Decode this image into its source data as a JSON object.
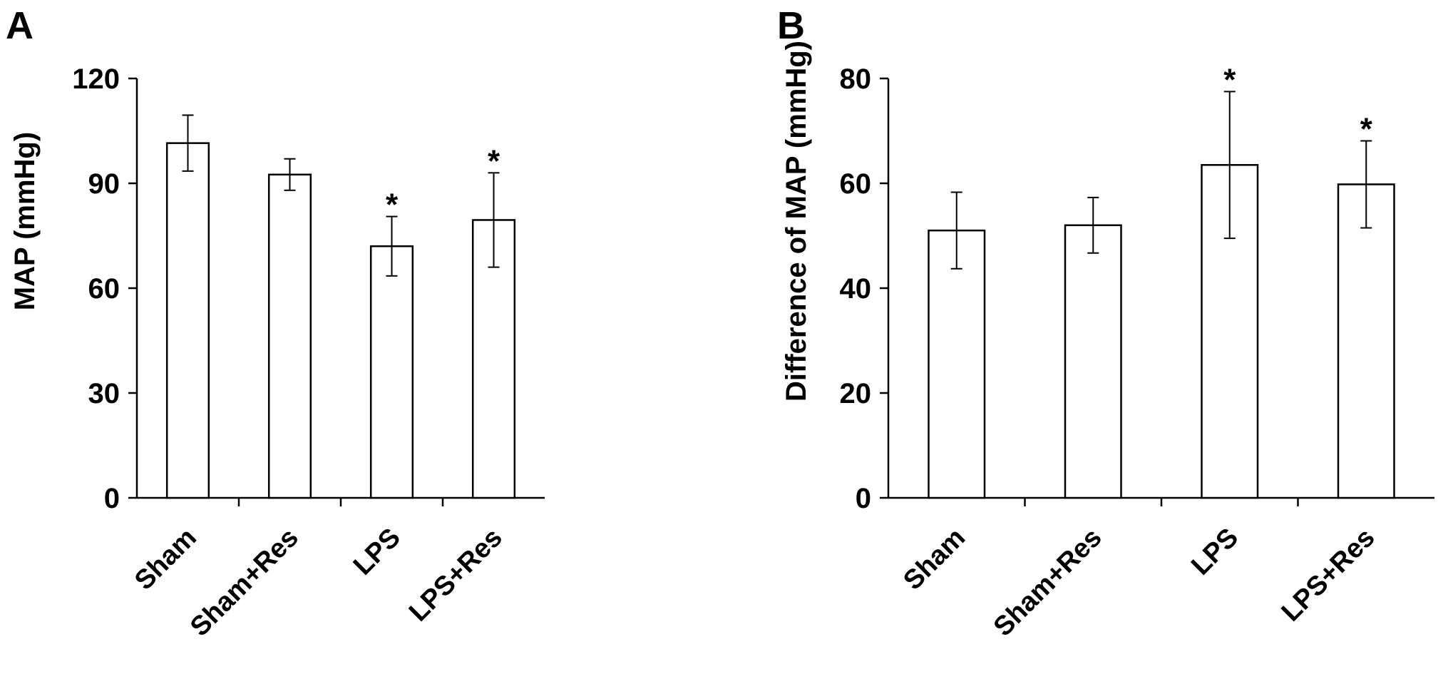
{
  "chart_data": [
    {
      "panel_label": "A",
      "type": "bar",
      "categories": [
        "Sham",
        "Sham+Res",
        "LPS",
        "LPS+Res"
      ],
      "values": [
        101.5,
        92.5,
        72,
        79.5
      ],
      "errors": [
        8,
        4.5,
        8.5,
        13.5
      ],
      "significance": [
        "",
        "",
        "*",
        "*"
      ],
      "ylabel": "MAP (mmHg)",
      "ylim": [
        0,
        120
      ],
      "yticks": [
        0,
        30,
        60,
        90,
        120
      ],
      "bar_fill": "#ffffff",
      "stroke_color": "#000000"
    },
    {
      "panel_label": "B",
      "type": "bar",
      "categories": [
        "Sham",
        "Sham+Res",
        "LPS",
        "LPS+Res"
      ],
      "values": [
        51,
        52,
        63.5,
        59.8
      ],
      "errors": [
        7.3,
        5.3,
        14,
        8.3
      ],
      "significance": [
        "",
        "",
        "*",
        "*"
      ],
      "ylabel": "Difference of MAP (mmHg)",
      "ylim": [
        0,
        80
      ],
      "yticks": [
        0,
        20,
        40,
        60,
        80
      ],
      "bar_fill": "#ffffff",
      "stroke_color": "#000000"
    }
  ]
}
